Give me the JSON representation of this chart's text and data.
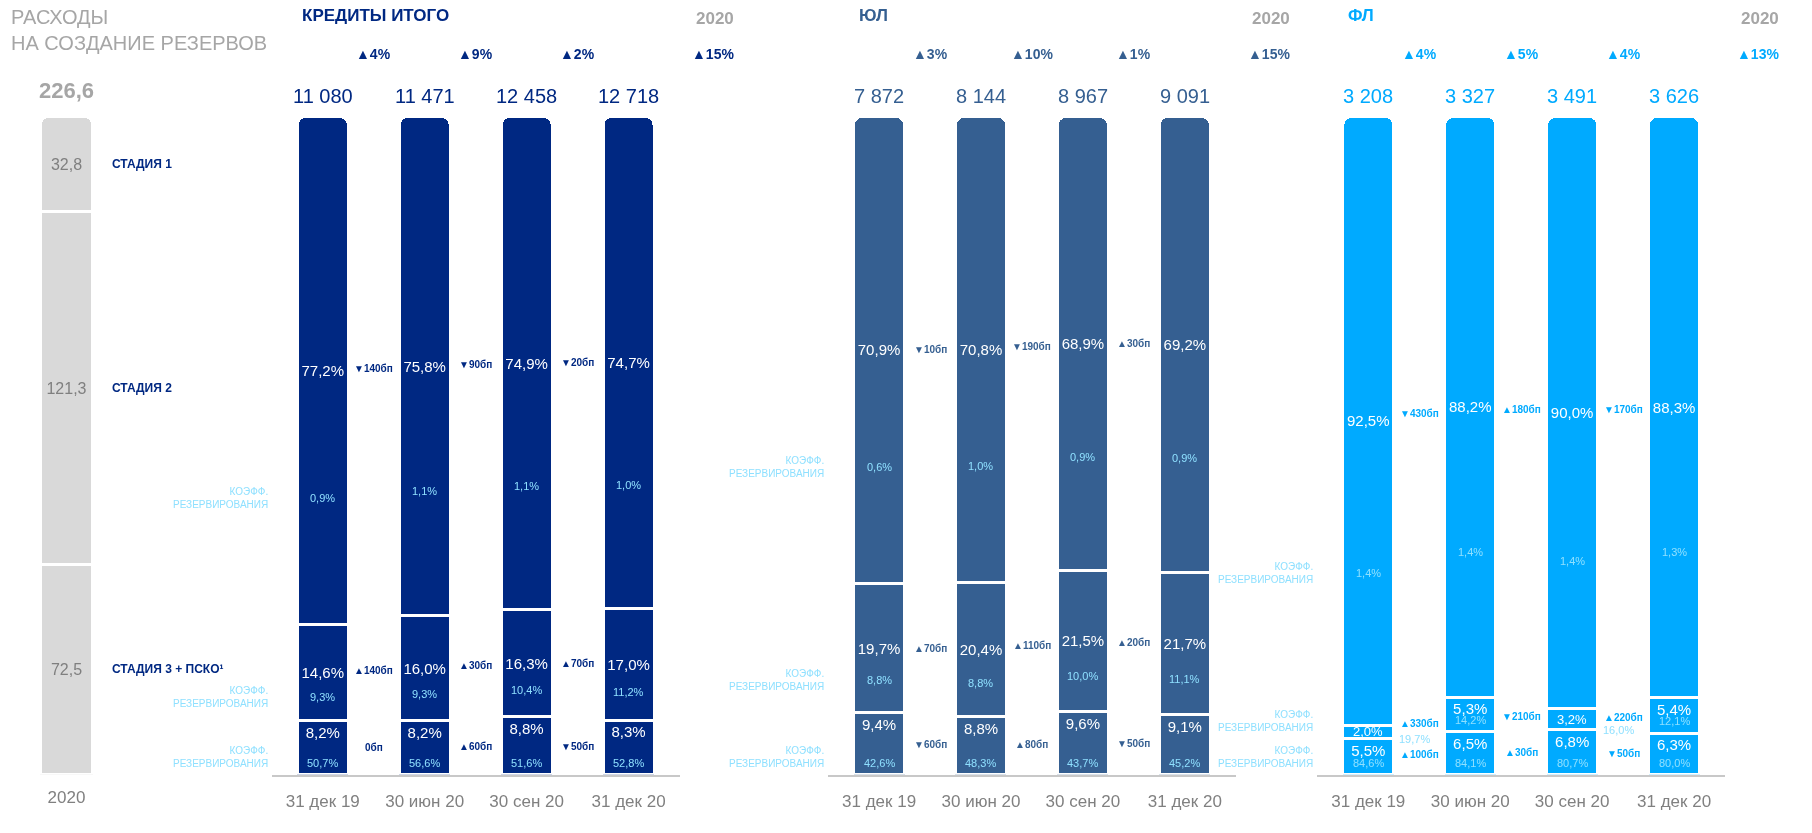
{
  "chart_data": [
    {
      "type": "bar",
      "stacked": true,
      "title": "РАСХОДЫ\nНА СОЗДАНИЕ РЕЗЕРВОВ",
      "categories": [
        "2020"
      ],
      "totals": [
        "226,6"
      ],
      "series": [
        {
          "name": "СТАДИЯ 3 + ПСКО¹",
          "color": "#d9d9d9",
          "values": [
            72.5
          ],
          "value_labels": [
            "72,5"
          ]
        },
        {
          "name": "СТАДИЯ 2",
          "color": "#d9d9d9",
          "values": [
            121.3
          ],
          "value_labels": [
            "121,3"
          ]
        },
        {
          "name": "СТАДИЯ 1",
          "color": "#d9d9d9",
          "values": [
            32.8
          ],
          "value_labels": [
            "32,8"
          ]
        }
      ]
    },
    {
      "type": "bar",
      "stacked": true,
      "title": "КРЕДИТЫ ИТОГО",
      "categories": [
        "31 дек 19",
        "30 июн 20",
        "30 сен 20",
        "31 дек 20"
      ],
      "series": [
        {
          "color": "#002882",
          "values": [
            8.2,
            8.2,
            8.8,
            8.3
          ],
          "value_labels": [
            "8,2%",
            "8,2%",
            "8,8%",
            "8,3%"
          ]
        },
        {
          "color": "#002882",
          "values": [
            14.6,
            16.0,
            16.3,
            17.0
          ],
          "value_labels": [
            "14,6%",
            "16,0%",
            "16,3%",
            "17,0%"
          ]
        },
        {
          "color": "#002882",
          "values": [
            77.2,
            75.8,
            74.9,
            74.7
          ],
          "value_labels": [
            "77,2%",
            "75,8%",
            "74,9%",
            "74,7%"
          ]
        }
      ],
      "annotations": [
        "11 080",
        "11 471",
        "12 458",
        "12 718",
        "2020",
        "▲15%",
        "▲4%",
        "▲9%",
        "▲2%",
        "КОЭФФ.\nРЕЗЕРВИРОВАНИЯ",
        "КОЭФФ.\nРЕЗЕРВИРОВАНИЯ",
        "КОЭФФ.\nРЕЗЕРВИРОВАНИЯ",
        "0,9%",
        "1,1%",
        "1,1%",
        "1,0%",
        "▼140бп",
        "▼90бп",
        "▼20бп",
        "9,3%",
        "9,3%",
        "10,4%",
        "11,2%",
        "▲140бп",
        "▲30бп",
        "▲70бп",
        "50,7%",
        "56,6%",
        "51,6%",
        "52,8%",
        "0бп",
        "▲60бп",
        "▼50бп"
      ]
    },
    {
      "type": "bar",
      "stacked": true,
      "title": "ЮЛ",
      "categories": [
        "31 дек 19",
        "30 июн 20",
        "30 сен 20",
        "31 дек 20"
      ],
      "series": [
        {
          "color": "#355f91",
          "values": [
            9.4,
            8.8,
            9.6,
            9.1
          ],
          "value_labels": [
            "9,4%",
            "8,8%",
            "9,6%",
            "9,1%"
          ]
        },
        {
          "color": "#355f91",
          "values": [
            19.7,
            20.4,
            21.5,
            21.7
          ],
          "value_labels": [
            "19,7%",
            "20,4%",
            "21,5%",
            "21,7%"
          ]
        },
        {
          "color": "#355f91",
          "values": [
            70.9,
            70.8,
            68.9,
            69.2
          ],
          "value_labels": [
            "70,9%",
            "70,8%",
            "68,9%",
            "69,2%"
          ]
        }
      ],
      "annotations": [
        "7 872",
        "8 144",
        "8 967",
        "9 091",
        "2020",
        "▲15%",
        "▲3%",
        "▲10%",
        "▲1%",
        "КОЭФФ.\nРЕЗЕРВИРОВАНИЯ",
        "КОЭФФ.\nРЕЗЕРВИРОВАНИЯ",
        "КОЭФФ.\nРЕЗЕРВИРОВАНИЯ",
        "0,6%",
        "1,0%",
        "0,9%",
        "0,9%",
        "▼10бп",
        "▼190бп",
        "▲30бп",
        "8,8%",
        "8,8%",
        "10,0%",
        "11,1%",
        "▲70бп",
        "▲110бп",
        "▲20бп",
        "42,6%",
        "48,3%",
        "43,7%",
        "45,2%",
        "▼60бп",
        "▲80бп",
        "▼50бп"
      ]
    },
    {
      "type": "bar",
      "stacked": true,
      "title": "ФЛ",
      "categories": [
        "31 дек 19",
        "30 июн 20",
        "30 сен 20",
        "31 дек 20"
      ],
      "series": [
        {
          "color": "#00aaff",
          "values": [
            5.5,
            6.5,
            6.8,
            6.3
          ],
          "value_labels": [
            "5,5%",
            "6,5%",
            "6,8%",
            "6,3%"
          ]
        },
        {
          "color": "#00aaff",
          "values": [
            2.0,
            5.3,
            3.2,
            5.4
          ],
          "value_labels": [
            "2,0%",
            "5,3%",
            "3,2%",
            "5,4%"
          ]
        },
        {
          "color": "#00aaff",
          "values": [
            92.5,
            88.2,
            90.0,
            88.3
          ],
          "value_labels": [
            "92,5%",
            "88,2%",
            "90,0%",
            "88,3%"
          ]
        }
      ],
      "annotations": [
        "3 208",
        "3 327",
        "3 491",
        "3 626",
        "2020",
        "▲13%",
        "▲4%",
        "▲5%",
        "▲4%",
        "КОЭФФ.\nРЕЗЕРВИРОВАНИЯ",
        "КОЭФФ.\nРЕЗЕРВИРОВАНИЯ",
        "КОЭФФ.\nРЕЗЕРВИРОВАНИЯ",
        "1,4%",
        "1,4%",
        "1,4%",
        "1,3%",
        "▼430бп",
        "▲180бп",
        "▼170бп",
        "19,7%",
        "14,2%",
        "16,0%",
        "12,1%",
        "▲330бп",
        "▼210бп",
        "▲220бп",
        "84,6%",
        "84,1%",
        "80,7%",
        "80,0%",
        "▲100бп",
        "▲30бп",
        "▼50бп"
      ]
    }
  ]
}
